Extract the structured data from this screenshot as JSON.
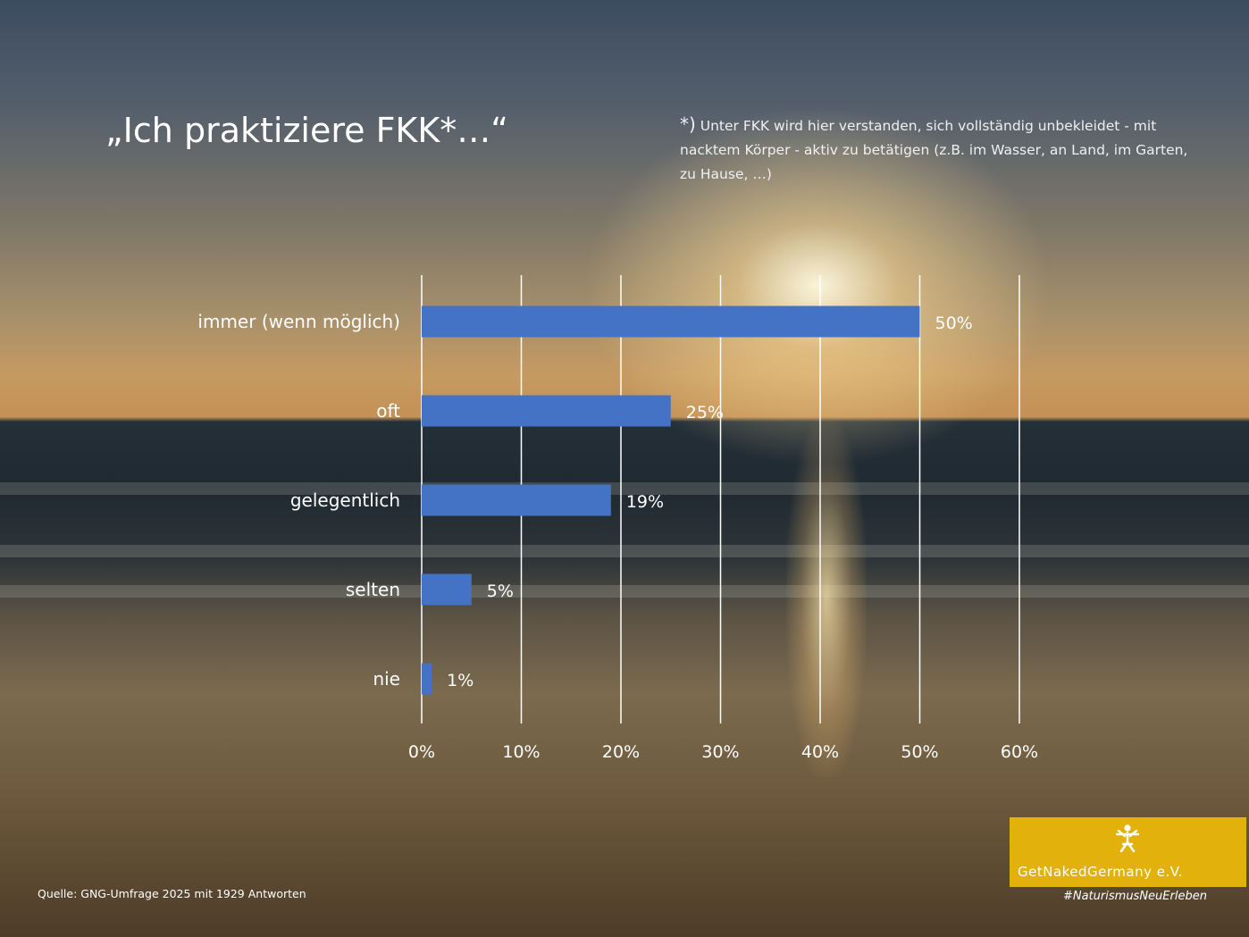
{
  "slide": {
    "title": "„Ich praktiziere FKK*…“",
    "footnote_marker": "*)",
    "footnote": "Unter FKK wird hier verstanden, sich vollständig unbekleidet - mit nacktem Körper - aktiv zu betätigen (z.B. im Wasser, an Land, im Garten, zu Hause, …)",
    "source": "Quelle: GNG-Umfrage 2025 mit 1929 Antworten",
    "logo_text": "GetNakedGermany e.V.",
    "hashtag": "#NaturismusNeuErleben"
  },
  "colors": {
    "bar": "#4472c4",
    "gridline": "#ffffff",
    "text": "#ffffff",
    "logo_background": "#e2b10b"
  },
  "chart_data": {
    "type": "bar",
    "orientation": "horizontal",
    "categories": [
      "immer (wenn möglich)",
      "oft",
      "gelegentlich",
      "selten",
      "nie"
    ],
    "values": [
      50,
      25,
      19,
      5,
      1
    ],
    "value_labels": [
      "50%",
      "25%",
      "19%",
      "5%",
      "1%"
    ],
    "xlim": [
      0,
      60
    ],
    "xticks": [
      0,
      10,
      20,
      30,
      40,
      50,
      60
    ],
    "xtick_labels": [
      "0%",
      "10%",
      "20%",
      "30%",
      "40%",
      "50%",
      "60%"
    ],
    "grid": true,
    "legend": false
  }
}
